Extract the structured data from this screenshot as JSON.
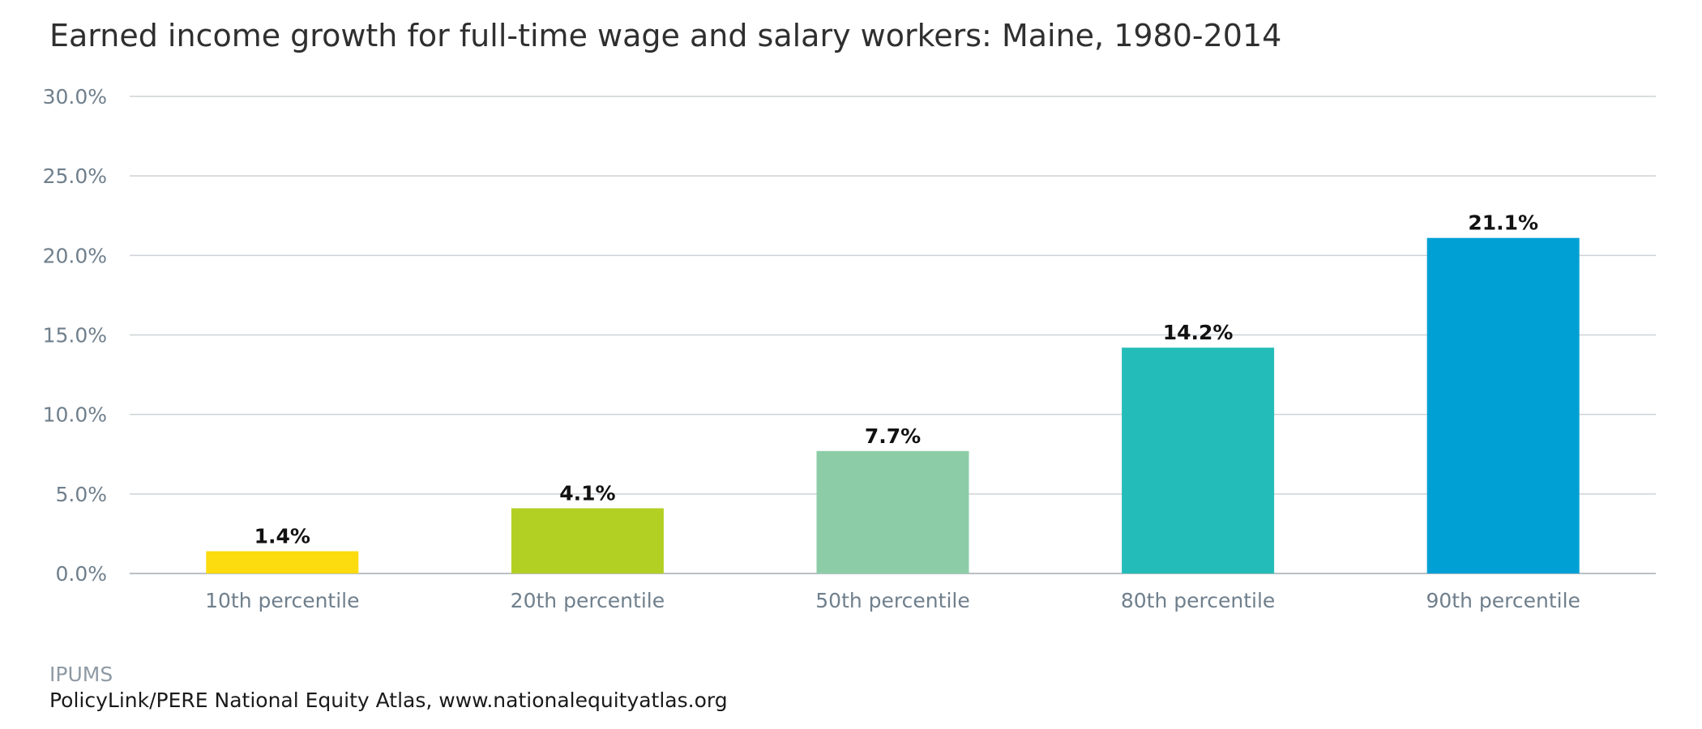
{
  "chart_data": {
    "type": "bar",
    "title": "Earned income growth for full-time wage and salary workers: Maine, 1980-2014",
    "xlabel": "",
    "ylabel": "",
    "categories": [
      "10th percentile",
      "20th percentile",
      "50th percentile",
      "80th percentile",
      "90th percentile"
    ],
    "values": [
      1.4,
      4.1,
      7.7,
      14.2,
      21.1
    ],
    "value_labels": [
      "1.4%",
      "4.1%",
      "7.7%",
      "14.2%",
      "21.1%"
    ],
    "colors": [
      "#fcdb0f",
      "#b2cf23",
      "#8ccda7",
      "#24bcb8",
      "#00a0d4"
    ],
    "ylim": [
      0,
      30
    ],
    "yticks": [
      0,
      5,
      10,
      15,
      20,
      25,
      30
    ],
    "ytick_labels": [
      "0.0%",
      "5.0%",
      "10.0%",
      "15.0%",
      "20.0%",
      "25.0%",
      "30.0%"
    ],
    "grid": true,
    "legend": "none"
  },
  "source": "IPUMS",
  "credit": "PolicyLink/PERE National Equity Atlas, www.nationalequityatlas.org"
}
